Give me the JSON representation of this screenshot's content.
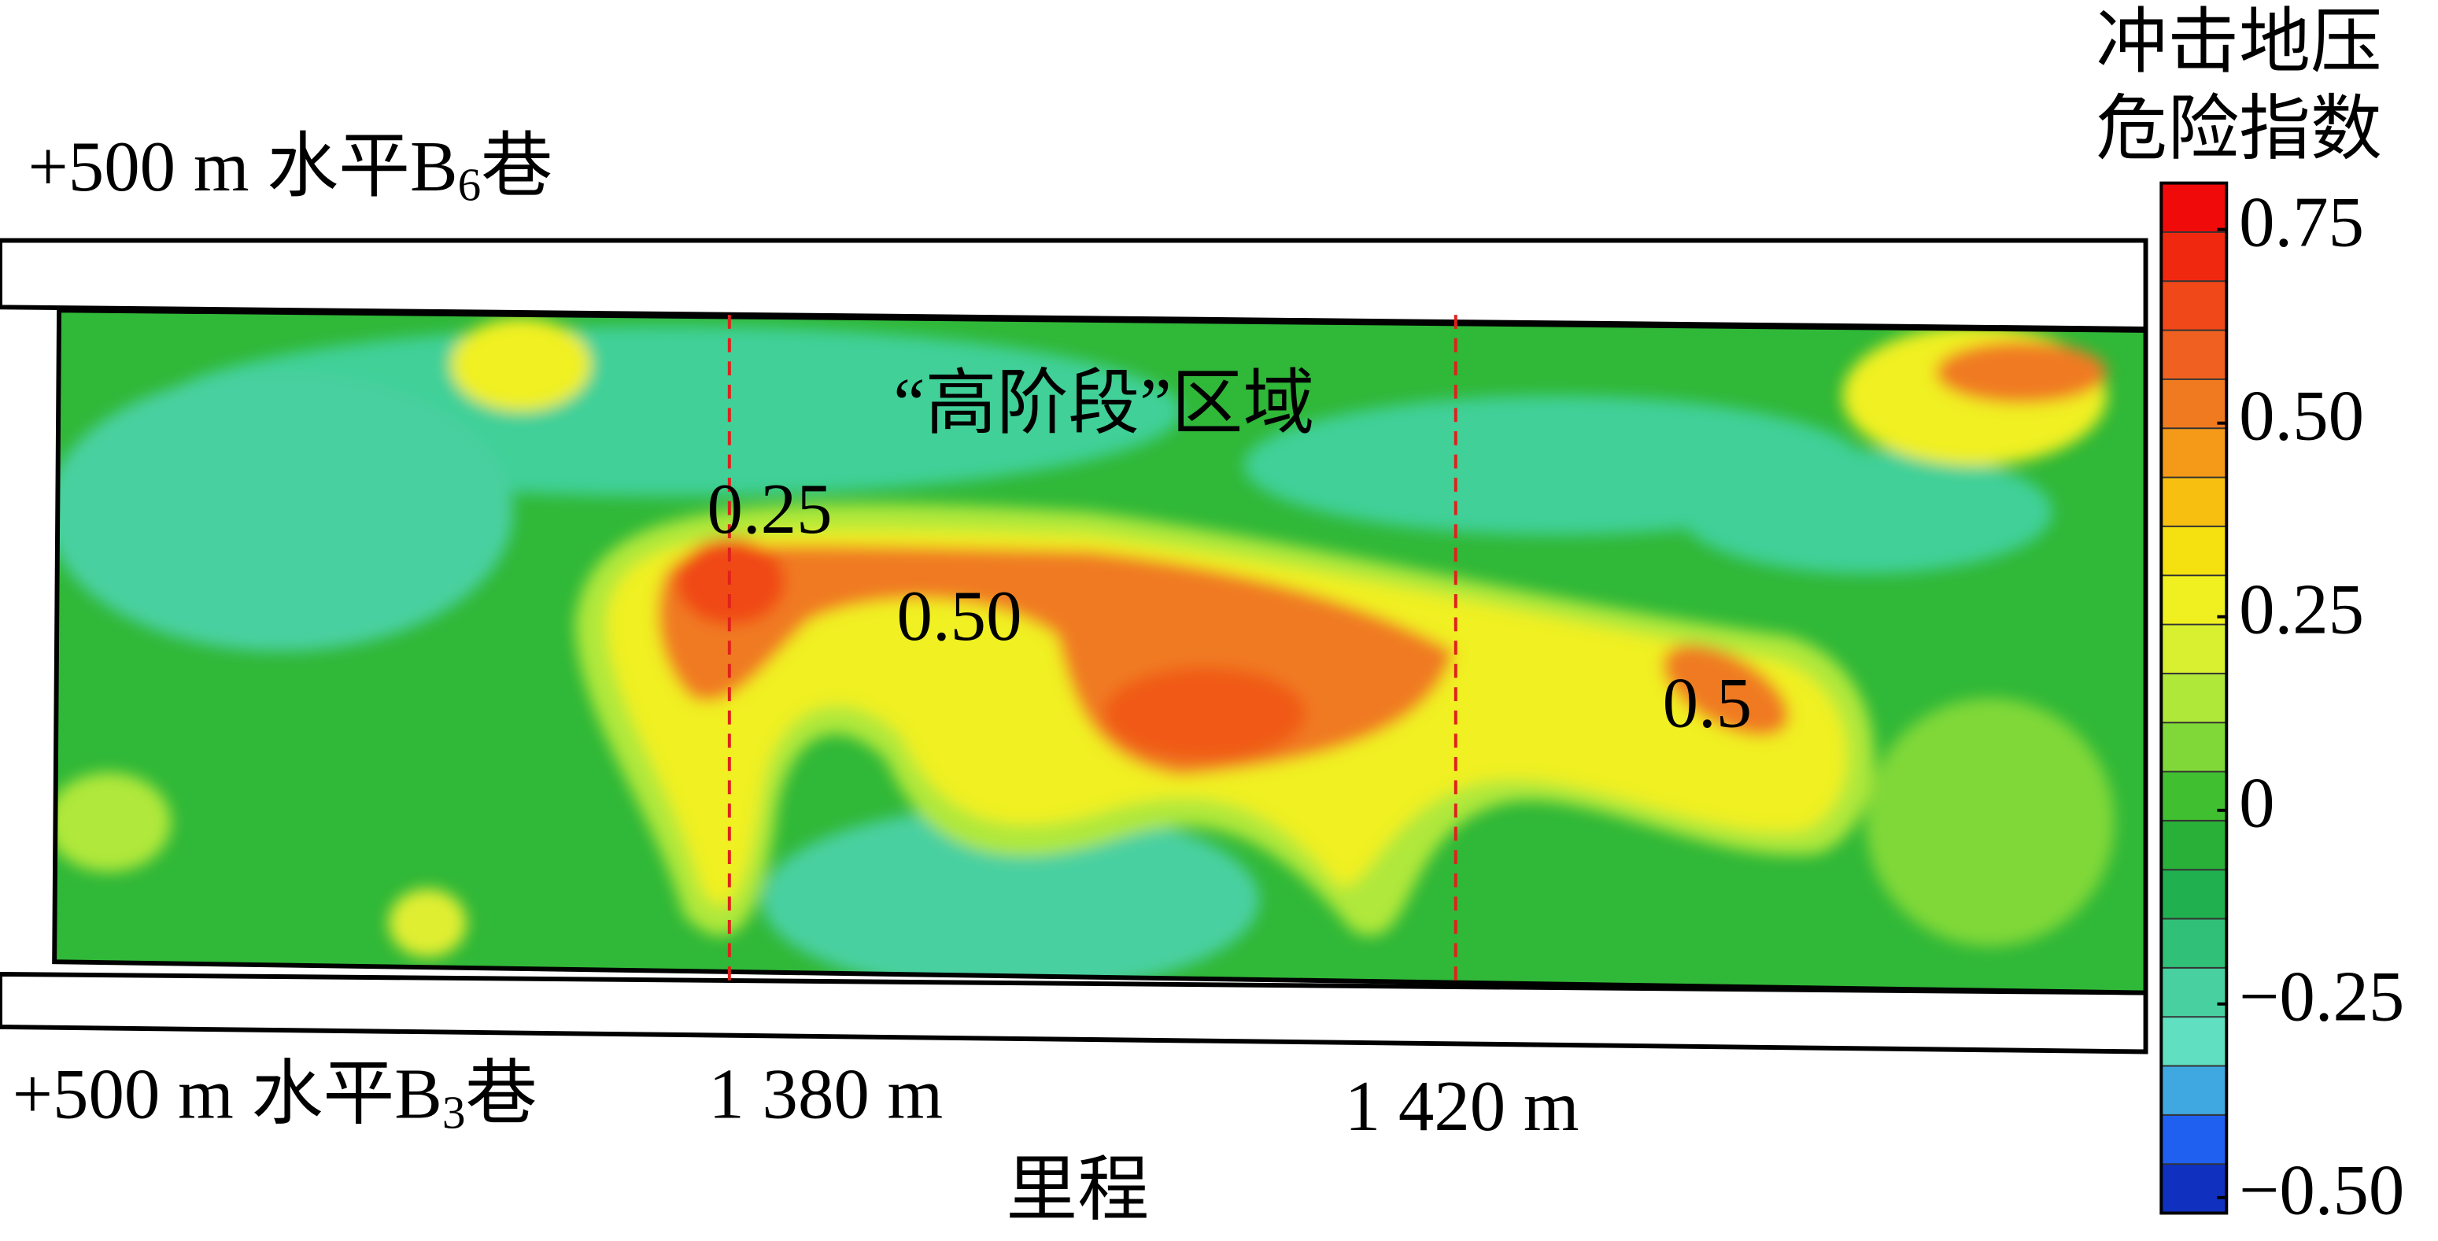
{
  "chart_data": {
    "type": "contour",
    "colorbar_title": [
      "冲击地压",
      "危险指数"
    ],
    "upper_label": {
      "text": "+500 m 水平B",
      "sub": "6",
      "suffix": "巷"
    },
    "lower_label": {
      "text": "+500 m 水平B",
      "sub": "3",
      "suffix": "巷"
    },
    "region_label": "“高阶段”区域",
    "x_label": "里程",
    "xlim": [
      1343,
      1458
    ],
    "xmarks": [
      {
        "value": 1380,
        "label": "1 380 m"
      },
      {
        "value": 1420,
        "label": "1 420 m"
      }
    ],
    "mark_color": "#e0201c",
    "clim": [
      -0.52,
      0.81
    ],
    "cticks": [
      {
        "value": 0.75,
        "label": "0.75"
      },
      {
        "value": 0.5,
        "label": "0.50"
      },
      0.25,
      0,
      {
        "value": -0.25,
        "label": "−0.25"
      },
      {
        "value": -0.5,
        "label": "−0.50"
      }
    ],
    "colors": [
      "#f00a0a",
      "#f02810",
      "#f04818",
      "#f06020",
      "#f07a20",
      "#f59a18",
      "#f7c010",
      "#f5e010",
      "#f0f020",
      "#d8f030",
      "#b0e83a",
      "#80d838",
      "#40c030",
      "#28b038",
      "#20b050",
      "#30c078",
      "#48d0a0",
      "#60e0c0",
      "#40a8e0",
      "#2060f0",
      "#1030c0"
    ],
    "contour_labels": [
      0.25,
      {
        "value": 0.5,
        "label": "0.50"
      },
      {
        "value": 0.5,
        "label": "0.5"
      }
    ]
  }
}
